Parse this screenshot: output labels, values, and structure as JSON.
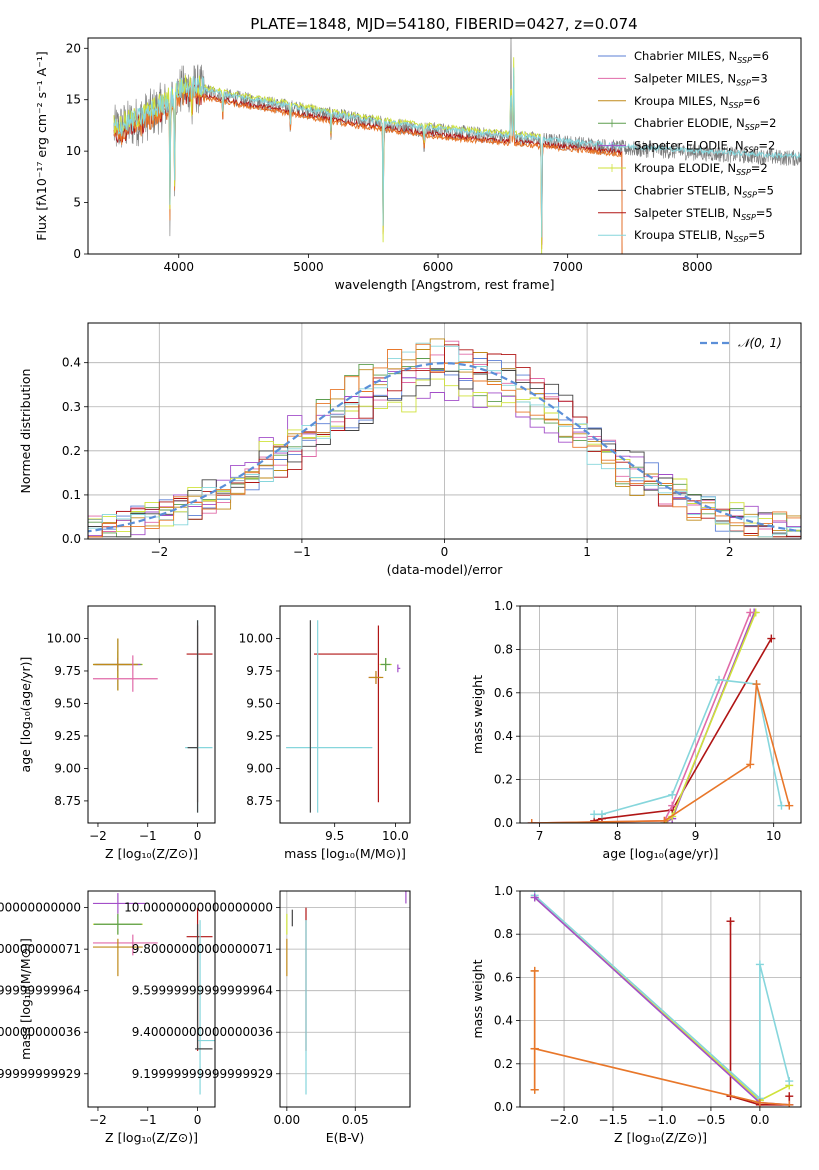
{
  "figure": {
    "title": "PLATE=1848, MJD=54180, FIBERID=0427, z=0.074"
  },
  "palette": {
    "chabrier_miles": "#5b7fd6",
    "salpeter_miles": "#e06aa8",
    "kroupa_miles": "#c08a1a",
    "chabrier_elodie": "#5d9e4f",
    "salpeter_elodie": "#a34fc9",
    "kroupa_elodie": "#cfe23a",
    "chabrier_stelib": "#444444",
    "salpeter_stelib": "#b01515",
    "kroupa_stelib": "#86d6dc",
    "observed": "#7a7a7a",
    "orange": "#e8772a",
    "gauss": "#5b8fd8",
    "grid": "#b0b0b0"
  },
  "chart_data": [
    {
      "id": "spectrum",
      "type": "line",
      "title": "PLATE=1848, MJD=54180, FIBERID=0427, z=0.074",
      "xlabel": "wavelength [Angstrom, rest frame]",
      "ylabel": "Flux [fλ10⁻¹⁷ erg cm⁻² s⁻¹ A⁻¹]",
      "xlim": [
        3300,
        8800
      ],
      "ylim": [
        0,
        21
      ],
      "xticks": [
        4000,
        5000,
        6000,
        7000,
        8000
      ],
      "yticks": [
        0,
        5,
        10,
        15,
        20
      ],
      "grid": false,
      "legend_position": "top-right",
      "legend": [
        {
          "label": "Chabrier MILES, N",
          "sub": "SSP",
          "suffix": "=6"
        },
        {
          "label": "Salpeter MILES, N",
          "sub": "SSP",
          "suffix": "=3"
        },
        {
          "label": "Kroupa MILES, N",
          "sub": "SSP",
          "suffix": "=6"
        },
        {
          "label": "Chabrier ELODIE, N",
          "sub": "SSP",
          "suffix": "=2"
        },
        {
          "label": "Salpeter ELODIE, N",
          "sub": "SSP",
          "suffix": "=2"
        },
        {
          "label": "Kroupa ELODIE, N",
          "sub": "SSP",
          "suffix": "=2"
        },
        {
          "label": "Chabrier STELIB, N",
          "sub": "SSP",
          "suffix": "=5"
        },
        {
          "label": "Salpeter STELIB, N",
          "sub": "SSP",
          "suffix": "=5"
        },
        {
          "label": "Kroupa STELIB, N",
          "sub": "SSP",
          "suffix": "=5"
        }
      ],
      "continuum": {
        "x": [
          3500,
          3700,
          3900,
          4000,
          4100,
          4300,
          4500,
          4700,
          5000,
          5300,
          5600,
          6000,
          6300,
          6600,
          7000,
          7400,
          7800,
          8200,
          8600,
          8800
        ],
        "y": [
          12,
          13,
          14.5,
          15.8,
          16.2,
          15.5,
          15.0,
          14.6,
          13.9,
          13.2,
          12.6,
          12.0,
          11.6,
          11.3,
          10.8,
          10.3,
          10.0,
          9.7,
          9.4,
          9.3
        ]
      },
      "absorption_features": [
        {
          "x": 3933,
          "depth": 12
        },
        {
          "x": 3968,
          "depth": 9
        },
        {
          "x": 4102,
          "depth": 3
        },
        {
          "x": 4340,
          "depth": 2
        },
        {
          "x": 4861,
          "depth": 2
        },
        {
          "x": 5175,
          "depth": 2
        },
        {
          "x": 5577,
          "depth": 12
        },
        {
          "x": 5892,
          "depth": 2
        },
        {
          "x": 6800,
          "depth": 11
        }
      ],
      "emission_features": [
        {
          "x": 6563,
          "height": 11
        },
        {
          "x": 6583,
          "height": 8
        }
      ]
    },
    {
      "id": "residuals",
      "type": "line",
      "xlabel": "(data-model)/error",
      "ylabel": "Normed distribution",
      "xlim": [
        -2.5,
        2.5
      ],
      "ylim": [
        0,
        0.49
      ],
      "xticks": [
        -2,
        -1,
        0,
        1,
        2
      ],
      "yticks": [
        0.0,
        0.1,
        0.2,
        0.3,
        0.4
      ],
      "grid": true,
      "legend_position": "top-right",
      "legend": [
        {
          "label": "𝒩(0, 1)"
        }
      ],
      "gaussian": {
        "mu": 0,
        "sigma": 1
      }
    },
    {
      "id": "age_vs_Z",
      "type": "scatter",
      "xlabel": "Z [log₁₀(Z/Z⊙)]",
      "ylabel": "age  [log₁₀(age/yr)]",
      "xlim": [
        -2.2,
        0.35
      ],
      "ylim": [
        8.58,
        10.25
      ],
      "xticks": [
        -2,
        -1,
        0
      ],
      "yticks": [
        8.75,
        9.0,
        9.25,
        9.5,
        9.75,
        10.0
      ],
      "grid": false,
      "points": [
        {
          "s": "kroupa_elodie",
          "x": -1.6,
          "y": 9.8,
          "xerr": [
            0.5,
            0.5
          ],
          "yerr": [
            0.1,
            0.1
          ]
        },
        {
          "s": "chabrier_elodie",
          "x": -1.6,
          "y": 9.8,
          "xerr": [
            0.48,
            0.48
          ],
          "yerr": [
            0.2,
            0.2
          ]
        },
        {
          "s": "salpeter_elodie",
          "x": -1.6,
          "y": 9.8,
          "xerr": [
            0.45,
            0.45
          ],
          "yerr": [
            0.05,
            0.05
          ]
        },
        {
          "s": "kroupa_miles",
          "x": -1.6,
          "y": 9.8,
          "xerr": [
            0.5,
            0.4
          ],
          "yerr": [
            0.2,
            0.2
          ]
        },
        {
          "s": "salpeter_miles",
          "x": -1.3,
          "y": 9.69,
          "xerr": [
            0.8,
            0.5
          ],
          "yerr": [
            0.1,
            0.18
          ]
        },
        {
          "s": "salpeter_stelib",
          "x": 0.0,
          "y": 9.88,
          "xerr": [
            0.22,
            0.3
          ],
          "yerr": [
            1.14,
            0.22
          ]
        },
        {
          "s": "kroupa_stelib",
          "x": 0.0,
          "y": 9.16,
          "xerr": [
            0.25,
            0.3
          ],
          "yerr": [
            0.5,
            0.98
          ]
        },
        {
          "s": "chabrier_stelib",
          "x": 0.0,
          "y": 9.16,
          "xerr": [
            0.2,
            0.0
          ],
          "yerr": [
            0.5,
            0.98
          ]
        }
      ]
    },
    {
      "id": "age_vs_mass",
      "type": "scatter",
      "xlabel": "mass [log₁₀(M/M⊙)]",
      "ylabel": "",
      "xlim": [
        9.05,
        10.12
      ],
      "ylim": [
        8.58,
        10.25
      ],
      "xticks": [
        9.5,
        10.0
      ],
      "yticks": [
        8.75,
        9.0,
        9.25,
        9.5,
        9.75,
        10.0
      ],
      "grid": false,
      "points": [
        {
          "s": "salpeter_stelib",
          "x": 9.55,
          "y": 9.88,
          "xerr": [
            0.22,
            0.3
          ],
          "yerr": [
            0.0,
            0.0
          ]
        },
        {
          "s": "salpeter_stelib",
          "x": 9.86,
          "y": 9.88,
          "xerr": [
            0.0,
            0.0
          ],
          "yerr": [
            1.14,
            0.22
          ]
        },
        {
          "s": "kroupa_stelib",
          "x": 9.36,
          "y": 9.16,
          "xerr": [
            0.26,
            0.45
          ],
          "yerr": [
            0.0,
            0.0
          ]
        },
        {
          "s": "kroupa_stelib",
          "x": 9.36,
          "y": 9.16,
          "xerr": [
            0.0,
            0.0
          ],
          "yerr": [
            0.5,
            0.98
          ]
        },
        {
          "s": "chabrier_stelib",
          "x": 9.3,
          "y": 9.16,
          "xerr": [
            0.0,
            0.0
          ],
          "yerr": [
            0.5,
            0.98
          ]
        },
        {
          "s": "kroupa_elodie",
          "x": 9.92,
          "y": 9.8,
          "xerr": [
            0.05,
            0.05
          ],
          "yerr": [
            0.05,
            0.05
          ]
        },
        {
          "s": "chabrier_elodie",
          "x": 9.92,
          "y": 9.8,
          "xerr": [
            0.04,
            0.04
          ],
          "yerr": [
            0.05,
            0.05
          ]
        },
        {
          "s": "salpeter_elodie",
          "x": 10.02,
          "y": 9.77,
          "xerr": [
            0.0,
            0.02
          ],
          "yerr": [
            0.03,
            0.03
          ]
        },
        {
          "s": "salpeter_miles",
          "x": 9.84,
          "y": 9.7,
          "xerr": [
            0.06,
            0.04
          ],
          "yerr": [
            0.05,
            0.05
          ]
        },
        {
          "s": "kroupa_miles",
          "x": 9.84,
          "y": 9.7,
          "xerr": [
            0.06,
            0.06
          ],
          "yerr": [
            0.05,
            0.05
          ]
        }
      ]
    },
    {
      "id": "mass_weight_vs_age",
      "type": "line",
      "xlabel": "age  [log₁₀(age/yr)]",
      "ylabel": "mass weight",
      "xlim": [
        6.75,
        10.35
      ],
      "ylim": [
        0,
        1.0
      ],
      "xticks": [
        7,
        8,
        9,
        10
      ],
      "yticks": [
        0.0,
        0.2,
        0.4,
        0.6,
        0.8,
        1.0
      ],
      "grid": true,
      "series": [
        {
          "s": "salpeter_stelib",
          "x": [
            7.7,
            7.8,
            8.7,
            9.97
          ],
          "y": [
            0.01,
            0.02,
            0.06,
            0.85
          ]
        },
        {
          "s": "salpeter_elodie",
          "x": [
            8.6,
            8.7,
            9.75
          ],
          "y": [
            0.0,
            0.02,
            0.97
          ]
        },
        {
          "s": "kroupa_elodie",
          "x": [
            8.6,
            8.7,
            9.77
          ],
          "y": [
            0.0,
            0.03,
            0.97
          ]
        },
        {
          "s": "salpeter_miles",
          "x": [
            6.9,
            8.6,
            8.7,
            9.7
          ],
          "y": [
            0.0,
            0.01,
            0.08,
            0.97
          ]
        },
        {
          "s": "kroupa_stelib",
          "x": [
            7.7,
            7.8,
            8.7,
            9.3,
            9.78,
            10.1
          ],
          "y": [
            0.04,
            0.04,
            0.13,
            0.66,
            0.64,
            0.08
          ]
        },
        {
          "s": "orange",
          "x": [
            6.9,
            8.6,
            9.7,
            9.78,
            10.2
          ],
          "y": [
            0.0,
            0.01,
            0.27,
            0.64,
            0.08
          ]
        }
      ]
    },
    {
      "id": "mass_vs_Z",
      "type": "scatter",
      "xlabel": "Z [log₁₀(Z/Z⊙)]",
      "ylabel": "mass [log₁₀(M/M⊙)]",
      "xlim": [
        -2.2,
        0.35
      ],
      "ylim": [
        9.04,
        10.08
      ],
      "xticks": [
        -2,
        -1,
        0
      ],
      "yticks": [
        9.2,
        9.4,
        9.6,
        9.8,
        10.0
      ],
      "grid": false,
      "points": [
        {
          "s": "salpeter_elodie",
          "x": -1.6,
          "y": 10.02,
          "xerr": [
            0.5,
            0.55
          ],
          "yerr": [
            0.05,
            0.05
          ]
        },
        {
          "s": "kroupa_elodie",
          "x": -1.6,
          "y": 9.92,
          "xerr": [
            0.5,
            0.5
          ],
          "yerr": [
            0.05,
            0.05
          ]
        },
        {
          "s": "chabrier_elodie",
          "x": -1.6,
          "y": 9.92,
          "xerr": [
            0.48,
            0.48
          ],
          "yerr": [
            0.05,
            0.05
          ]
        },
        {
          "s": "salpeter_miles",
          "x": -1.3,
          "y": 9.83,
          "xerr": [
            0.8,
            0.5
          ],
          "yerr": [
            0.06,
            0.04
          ]
        },
        {
          "s": "kroupa_miles",
          "x": -1.6,
          "y": 9.81,
          "xerr": [
            0.5,
            0.5
          ],
          "yerr": [
            0.14,
            0.04
          ]
        },
        {
          "s": "salpeter_stelib",
          "x": 0.0,
          "y": 9.86,
          "xerr": [
            0.22,
            0.3
          ],
          "yerr": [
            0.55,
            0.14
          ]
        },
        {
          "s": "kroupa_stelib",
          "x": 0.05,
          "y": 9.36,
          "xerr": [
            0.05,
            0.3
          ],
          "yerr": [
            0.26,
            0.58
          ]
        },
        {
          "s": "chabrier_stelib",
          "x": 0.0,
          "y": 9.32,
          "xerr": [
            0.05,
            0.3
          ],
          "yerr": [
            0.0,
            0.6
          ]
        }
      ]
    },
    {
      "id": "mass_vs_ebv",
      "type": "scatter",
      "xlabel": "E(B-V)",
      "ylabel": "",
      "xlim": [
        -0.005,
        0.09
      ],
      "ylim": [
        9.04,
        10.08
      ],
      "xticks": [
        0.0,
        0.05
      ],
      "yticks": [
        9.2,
        9.4,
        9.6,
        9.8,
        10.0
      ],
      "grid": true,
      "points": [
        {
          "s": "kroupa_elodie",
          "x": 0.0,
          "y": 9.92,
          "xerr": [
            0,
            0
          ],
          "yerr": [
            0.05,
            0.05
          ]
        },
        {
          "s": "kroupa_miles",
          "x": 0.0,
          "y": 9.81,
          "xerr": [
            0,
            0
          ],
          "yerr": [
            0.14,
            0.04
          ]
        },
        {
          "s": "chabrier_stelib",
          "x": 0.004,
          "y": 9.95,
          "xerr": [
            0,
            0
          ],
          "yerr": [
            0.04,
            0.04
          ]
        },
        {
          "s": "salpeter_stelib",
          "x": 0.014,
          "y": 9.86,
          "xerr": [
            0,
            0
          ],
          "yerr": [
            0.55,
            0.14
          ]
        },
        {
          "s": "kroupa_stelib",
          "x": 0.014,
          "y": 9.36,
          "xerr": [
            0,
            0
          ],
          "yerr": [
            0.26,
            0.58
          ]
        },
        {
          "s": "salpeter_elodie",
          "x": 0.087,
          "y": 10.05,
          "xerr": [
            0,
            0
          ],
          "yerr": [
            0.03,
            0.03
          ]
        }
      ]
    },
    {
      "id": "mass_weight_vs_Z",
      "type": "line",
      "xlabel": "Z [log₁₀(Z/Z⊙)]",
      "ylabel": "mass weight",
      "xlim": [
        -2.45,
        0.42
      ],
      "ylim": [
        0,
        1.0
      ],
      "xticks": [
        -2.0,
        -1.5,
        -1.0,
        -0.5,
        0.0
      ],
      "yticks": [
        0.0,
        0.2,
        0.4,
        0.6,
        0.8,
        1.0
      ],
      "grid": true,
      "series": [
        {
          "s": "salpeter_stelib",
          "x": [
            -0.3,
            -0.3,
            0.0,
            0.3,
            0.3
          ],
          "y": [
            0.86,
            0.05,
            0.01,
            0.01,
            0.05
          ]
        },
        {
          "s": "kroupa_elodie",
          "x": [
            -2.3,
            0.0,
            0.3
          ],
          "y": [
            0.97,
            0.03,
            0.1
          ]
        },
        {
          "s": "kroupa_stelib",
          "x": [
            -2.3,
            0.0,
            0.0,
            0.3
          ],
          "y": [
            0.98,
            0.04,
            0.66,
            0.12
          ]
        },
        {
          "s": "salpeter_elodie",
          "x": [
            -2.3,
            0.0,
            0.3
          ],
          "y": [
            0.97,
            0.02,
            0.01
          ]
        },
        {
          "s": "kroupa_miles",
          "x": [
            -2.3,
            -2.3,
            -2.3
          ],
          "y": [
            0.08,
            0.63,
            0.27
          ]
        },
        {
          "s": "orange",
          "x": [
            -2.3,
            -2.3,
            0.0,
            0.3
          ],
          "y": [
            0.08,
            0.27,
            0.02,
            0.01
          ]
        },
        {
          "s": "orange",
          "x": [
            -2.3,
            -2.3
          ],
          "y": [
            0.27,
            0.63
          ]
        }
      ]
    }
  ]
}
